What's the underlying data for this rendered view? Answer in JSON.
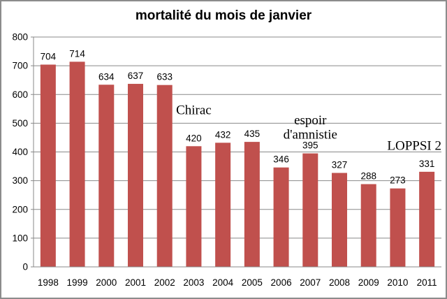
{
  "chart_data": {
    "type": "bar",
    "title": "mortalité du mois de janvier",
    "categories": [
      "1998",
      "1999",
      "2000",
      "2001",
      "2002",
      "2003",
      "2004",
      "2005",
      "2006",
      "2007",
      "2008",
      "2009",
      "2010",
      "2011"
    ],
    "values": [
      704,
      714,
      634,
      637,
      633,
      420,
      432,
      435,
      346,
      395,
      327,
      288,
      273,
      331
    ],
    "xlabel": "",
    "ylabel": "",
    "ylim": [
      0,
      800
    ],
    "yticks": [
      0,
      100,
      200,
      300,
      400,
      500,
      600,
      700,
      800
    ],
    "grid": true,
    "legend": "none",
    "data_labels": true,
    "colors": {
      "bar": "#C0504D",
      "gridline": "#898989",
      "axis": "#898989",
      "text": "#000000",
      "border": "#8C8C8C"
    },
    "annotations": [
      {
        "lines": [
          "Chirac"
        ],
        "category_index": 5,
        "y_value": 547,
        "align": "center"
      },
      {
        "lines": [
          "espoir",
          "d'amnistie"
        ],
        "category_index": 9,
        "y_value": 486,
        "align": "center"
      },
      {
        "lines": [
          "LOPPSI 2"
        ],
        "category_index": 13,
        "y_value": 423,
        "align": "right-edge"
      }
    ]
  }
}
